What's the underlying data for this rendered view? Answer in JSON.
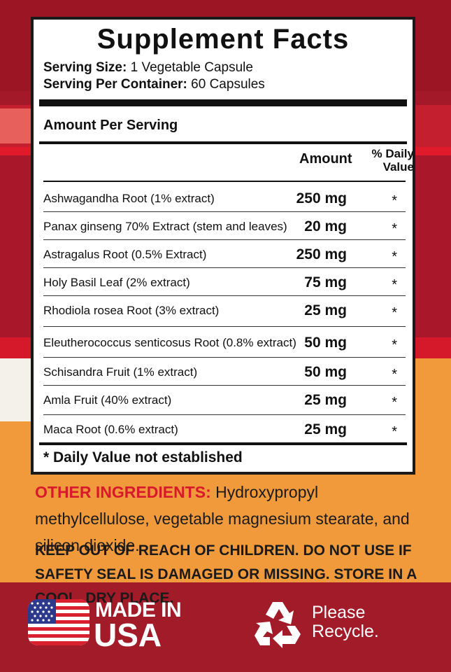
{
  "panel": {
    "title": "Supplement Facts",
    "serving_size_label": "Serving Size:",
    "serving_size_value": "1 Vegetable Capsule",
    "servings_label": "Serving Per Container:",
    "servings_value": "60 Capsules",
    "amount_per_serving": "Amount Per Serving",
    "col_amount": "Amount",
    "col_dv_line1": "% Daily",
    "col_dv_line2": "Value",
    "rows": [
      {
        "name": "Ashwagandha Root (1% extract)",
        "amount": "250 mg",
        "dv": "*"
      },
      {
        "name": "Panax ginseng 70% Extract (stem and leaves)",
        "amount": "20 mg",
        "dv": "*"
      },
      {
        "name": "Astragalus Root (0.5% Extract)",
        "amount": "250 mg",
        "dv": "*"
      },
      {
        "name": "Holy Basil Leaf (2% extract)",
        "amount": "75 mg",
        "dv": "*"
      },
      {
        "name": "Rhodiola rosea Root (3% extract)",
        "amount": "25 mg",
        "dv": "*"
      },
      {
        "name": "Eleutherococcus senticosus Root (0.8% extract)",
        "amount": "50 mg",
        "dv": "*"
      },
      {
        "name": "Schisandra Fruit (1% extract)",
        "amount": "50 mg",
        "dv": "*"
      },
      {
        "name": "Amla Fruit (40% extract)",
        "amount": "25 mg",
        "dv": "*"
      },
      {
        "name": "Maca Root (0.6% extract)",
        "amount": "25 mg",
        "dv": "*"
      }
    ],
    "footnote": "* Daily Value not established"
  },
  "other_ingredients": {
    "label": "OTHER INGREDIENTS:",
    "text": "Hydroxypropyl methylcellulose, vegetable magnesium stearate, and silicon dioxide."
  },
  "warning": "KEEP OUT OF REACH OF CHILDREN. DO NOT USE IF SAFETY SEAL IS DAMAGED OR MISSING. STORE IN A COOL, DRY PLACE.",
  "footer": {
    "made_in": "MADE IN",
    "usa": "USA",
    "please_line1": "Please",
    "please_line2": "Recycle."
  },
  "colors": {
    "brand_red": "#a3192a",
    "accent_orange": "#f09a3c",
    "label_red": "#d8182b"
  }
}
